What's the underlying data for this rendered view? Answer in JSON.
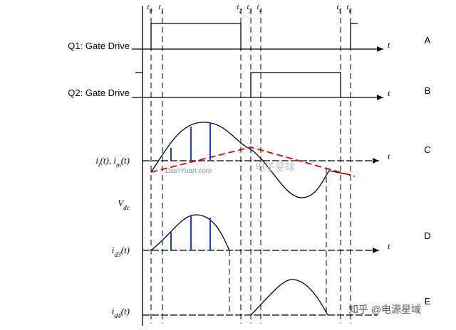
{
  "time_marks": [
    {
      "base": "t",
      "sub": "0"
    },
    {
      "base": "t",
      "sub": "1"
    },
    {
      "base": "t",
      "sub": "2"
    },
    {
      "base": "t",
      "sub": "3"
    },
    {
      "base": "t",
      "sub": "4"
    },
    {
      "base": "t",
      "sub": "5"
    },
    {
      "base": "t",
      "sub": "6"
    }
  ],
  "signals": [
    {
      "panel": "A",
      "axis_label": "t",
      "label": [
        {
          "text": "Q1: Gate Drive",
          "sub": false
        }
      ]
    },
    {
      "panel": "B",
      "axis_label": "t",
      "label": [
        {
          "text": "Q2: Gate Drive",
          "sub": false
        }
      ]
    },
    {
      "panel": "C",
      "axis_label": "t",
      "label": [
        {
          "text": "i",
          "sub": false
        },
        {
          "text": "t",
          "sub": true
        },
        {
          "text": "(t), i",
          "sub": false
        },
        {
          "text": "m",
          "sub": true
        },
        {
          "text": "(t)",
          "sub": false
        }
      ]
    },
    {
      "panel": "D",
      "axis_label": "t",
      "label": [
        {
          "text": "i",
          "sub": false
        },
        {
          "text": "d3",
          "sub": true
        },
        {
          "text": "(t)",
          "sub": false
        }
      ]
    },
    {
      "panel": "E",
      "axis_label": "",
      "label": [
        {
          "text": "i",
          "sub": false
        },
        {
          "text": "d4",
          "sub": true
        },
        {
          "text": "(t)",
          "sub": false
        }
      ]
    }
  ],
  "vdc_label": [
    {
      "text": "V",
      "sub": false
    },
    {
      "text": "dc",
      "sub": true
    }
  ],
  "watermarks": [
    "DianYuan.com",
    "电子星球",
    "知乎 @电源星域"
  ]
}
